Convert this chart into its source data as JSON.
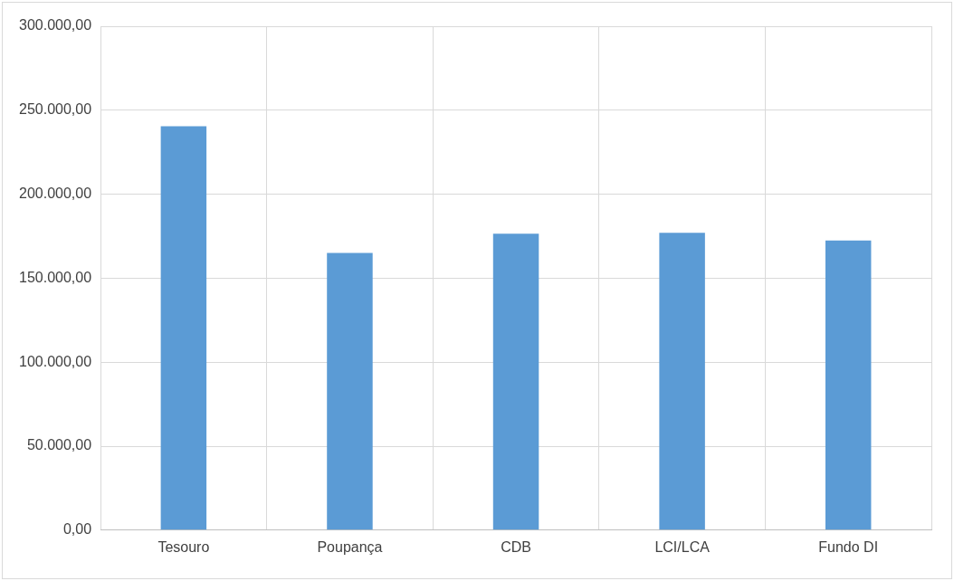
{
  "chart_data": {
    "type": "bar",
    "categories": [
      "Tesouro",
      "Poupança",
      "CDB",
      "LCI/LCA",
      "Fundo DI"
    ],
    "values": [
      240500,
      165000,
      176500,
      177000,
      172500
    ],
    "color": "#5b9bd5",
    "ylim": [
      0,
      300000
    ],
    "yticks": [
      {
        "value": 0,
        "label": "0,00"
      },
      {
        "value": 50000,
        "label": "50.000,00"
      },
      {
        "value": 100000,
        "label": "100.000,00"
      },
      {
        "value": 150000,
        "label": "150.000,00"
      },
      {
        "value": 200000,
        "label": "200.000,00"
      },
      {
        "value": 250000,
        "label": "250.000,00"
      },
      {
        "value": 300000,
        "label": "300.000,00"
      }
    ],
    "grid": true
  }
}
